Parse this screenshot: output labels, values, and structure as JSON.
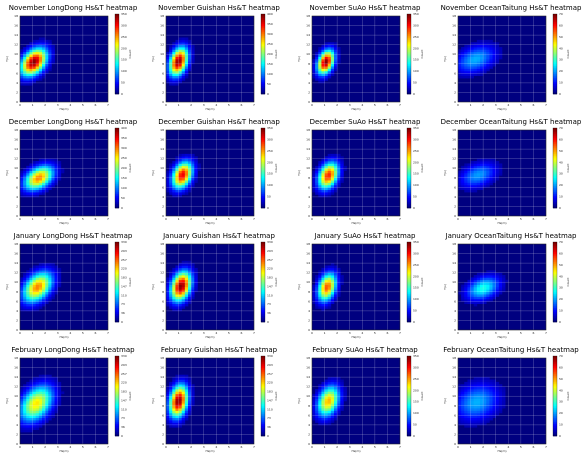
{
  "chart_data": [
    {
      "type": "heatmap",
      "title": "November LongDong Hs&T heatmap",
      "xlabel": "Hs(m)",
      "ylabel": "T(s)",
      "x_ticks": [
        "0",
        "1",
        "2",
        "3",
        "4",
        "5",
        "6",
        "7"
      ],
      "y_ticks": [
        "0",
        "2",
        "4",
        "6",
        "8",
        "10",
        "12",
        "14",
        "16",
        "18"
      ],
      "xlim": [
        0,
        7
      ],
      "ylim": [
        0,
        18
      ],
      "colorbar_ticks": [
        "0",
        "50",
        "100",
        "150",
        "200",
        "250",
        "300",
        "350"
      ],
      "colorbar_label": "Count",
      "peak": [
        1.1,
        8.4
      ],
      "spread": [
        0.7,
        1.8
      ],
      "tilt": 0.5,
      "intensity": 1.0
    },
    {
      "type": "heatmap",
      "title": "November Guishan Hs&T heatmap",
      "xlabel": "Hs(m)",
      "ylabel": "T(s)",
      "x_ticks": [
        "0",
        "1",
        "2",
        "3",
        "4",
        "5",
        "6",
        "7"
      ],
      "y_ticks": [
        "0",
        "2",
        "4",
        "6",
        "8",
        "10",
        "12",
        "14",
        "16",
        "18"
      ],
      "xlim": [
        0,
        7
      ],
      "ylim": [
        0,
        18
      ],
      "colorbar_ticks": [
        "0",
        "50",
        "100",
        "150",
        "200",
        "250",
        "300",
        "350",
        "400"
      ],
      "colorbar_label": "Count",
      "peak": [
        1.0,
        8.5
      ],
      "spread": [
        0.5,
        1.9
      ],
      "tilt": 0.6,
      "intensity": 1.0
    },
    {
      "type": "heatmap",
      "title": "November SuAo Hs&T heatmap",
      "xlabel": "Hs(m)",
      "ylabel": "T(s)",
      "x_ticks": [
        "0",
        "1",
        "2",
        "3",
        "4",
        "5",
        "6",
        "7"
      ],
      "y_ticks": [
        "0",
        "2",
        "4",
        "6",
        "8",
        "10",
        "12",
        "14",
        "16",
        "18"
      ],
      "xlim": [
        0,
        7
      ],
      "ylim": [
        0,
        18
      ],
      "colorbar_ticks": [
        "0",
        "50",
        "100",
        "150",
        "200",
        "250",
        "300",
        "350"
      ],
      "colorbar_label": "Count",
      "peak": [
        1.1,
        8.4
      ],
      "spread": [
        0.45,
        1.6
      ],
      "tilt": 0.6,
      "intensity": 1.0
    },
    {
      "type": "heatmap",
      "title": "November OceanTaitung Hs&T heatmap",
      "xlabel": "Hs(m)",
      "ylabel": "T(s)",
      "x_ticks": [
        "0",
        "1",
        "2",
        "3",
        "4",
        "5",
        "6",
        "7"
      ],
      "y_ticks": [
        "0",
        "2",
        "4",
        "6",
        "8",
        "10",
        "12",
        "14",
        "16",
        "18"
      ],
      "xlim": [
        0,
        7
      ],
      "ylim": [
        0,
        18
      ],
      "colorbar_ticks": [
        "0",
        "10",
        "20",
        "30",
        "40",
        "50",
        "60",
        "70"
      ],
      "colorbar_label": "Count",
      "peak": [
        1.4,
        9.0
      ],
      "spread": [
        1.1,
        1.9
      ],
      "tilt": 0.3,
      "intensity": 0.3
    },
    {
      "type": "heatmap",
      "title": "December LongDong Hs&T heatmap",
      "xlabel": "Hs(m)",
      "ylabel": "T(s)",
      "x_ticks": [
        "0",
        "1",
        "2",
        "3",
        "4",
        "5",
        "6",
        "7"
      ],
      "y_ticks": [
        "0",
        "2",
        "4",
        "6",
        "8",
        "10",
        "12",
        "14",
        "16",
        "18"
      ],
      "xlim": [
        0,
        7
      ],
      "ylim": [
        0,
        18
      ],
      "colorbar_ticks": [
        "0",
        "50",
        "100",
        "150",
        "200",
        "250",
        "300",
        "350",
        "400"
      ],
      "colorbar_label": "Count",
      "peak": [
        1.5,
        8.0
      ],
      "spread": [
        0.8,
        1.6
      ],
      "tilt": 0.4,
      "intensity": 0.75
    },
    {
      "type": "heatmap",
      "title": "December Guishan Hs&T heatmap",
      "xlabel": "Hs(m)",
      "ylabel": "T(s)",
      "x_ticks": [
        "0",
        "1",
        "2",
        "3",
        "4",
        "5",
        "6",
        "7"
      ],
      "y_ticks": [
        "0",
        "2",
        "4",
        "6",
        "8",
        "10",
        "12",
        "14",
        "16",
        "18"
      ],
      "xlim": [
        0,
        7
      ],
      "ylim": [
        0,
        18
      ],
      "colorbar_ticks": [
        "0",
        "50",
        "100",
        "150",
        "200",
        "250",
        "300",
        "350"
      ],
      "colorbar_label": "Count",
      "peak": [
        1.3,
        8.6
      ],
      "spread": [
        0.55,
        1.8
      ],
      "tilt": 0.5,
      "intensity": 0.9
    },
    {
      "type": "heatmap",
      "title": "December SuAo Hs&T heatmap",
      "xlabel": "Hs(m)",
      "ylabel": "T(s)",
      "x_ticks": [
        "0",
        "1",
        "2",
        "3",
        "4",
        "5",
        "6",
        "7"
      ],
      "y_ticks": [
        "0",
        "2",
        "4",
        "6",
        "8",
        "10",
        "12",
        "14",
        "16",
        "18"
      ],
      "xlim": [
        0,
        7
      ],
      "ylim": [
        0,
        18
      ],
      "colorbar_ticks": [
        "0",
        "50",
        "100",
        "150",
        "200",
        "250",
        "300",
        "350"
      ],
      "colorbar_label": "Count",
      "peak": [
        1.3,
        8.5
      ],
      "spread": [
        0.55,
        1.8
      ],
      "tilt": 0.5,
      "intensity": 0.85
    },
    {
      "type": "heatmap",
      "title": "December OceanTaitung Hs&T heatmap",
      "xlabel": "Hs(m)",
      "ylabel": "T(s)",
      "x_ticks": [
        "0",
        "1",
        "2",
        "3",
        "4",
        "5",
        "6",
        "7"
      ],
      "y_ticks": [
        "0",
        "2",
        "4",
        "6",
        "8",
        "10",
        "12",
        "14",
        "16",
        "18"
      ],
      "xlim": [
        0,
        7
      ],
      "ylim": [
        0,
        18
      ],
      "colorbar_ticks": [
        "0",
        "10",
        "20",
        "30",
        "40",
        "50",
        "60",
        "70"
      ],
      "colorbar_label": "Count",
      "peak": [
        1.6,
        8.6
      ],
      "spread": [
        1.0,
        1.7
      ],
      "tilt": 0.3,
      "intensity": 0.28
    },
    {
      "type": "heatmap",
      "title": "January LongDong Hs&T heatmap",
      "xlabel": "Hs(m)",
      "ylabel": "T(s)",
      "x_ticks": [
        "0",
        "1",
        "2",
        "3",
        "4",
        "5",
        "6",
        "7"
      ],
      "y_ticks": [
        "0",
        "2",
        "4",
        "6",
        "8",
        "10",
        "12",
        "14",
        "16",
        "18"
      ],
      "xlim": [
        0,
        7
      ],
      "ylim": [
        0,
        18
      ],
      "colorbar_ticks": [
        "0",
        "36",
        "73",
        "110",
        "147",
        "183",
        "220",
        "257",
        "293",
        "330"
      ],
      "colorbar_label": "Count",
      "peak": [
        1.4,
        9.0
      ],
      "spread": [
        0.8,
        2.0
      ],
      "tilt": 0.5,
      "intensity": 0.75
    },
    {
      "type": "heatmap",
      "title": "January Guishan Hs&T heatmap",
      "xlabel": "Hs(m)",
      "ylabel": "T(s)",
      "x_ticks": [
        "0",
        "1",
        "2",
        "3",
        "4",
        "5",
        "6",
        "7"
      ],
      "y_ticks": [
        "0",
        "2",
        "4",
        "6",
        "8",
        "10",
        "12",
        "14",
        "16",
        "18"
      ],
      "xlim": [
        0,
        7
      ],
      "ylim": [
        0,
        18
      ],
      "colorbar_ticks": [
        "0",
        "36",
        "73",
        "110",
        "147",
        "183",
        "220",
        "257",
        "293",
        "330"
      ],
      "colorbar_label": "Count",
      "peak": [
        1.2,
        9.2
      ],
      "spread": [
        0.55,
        2.0
      ],
      "tilt": 0.5,
      "intensity": 1.0
    },
    {
      "type": "heatmap",
      "title": "January SuAo Hs&T heatmap",
      "xlabel": "Hs(m)",
      "ylabel": "T(s)",
      "x_ticks": [
        "0",
        "1",
        "2",
        "3",
        "4",
        "5",
        "6",
        "7"
      ],
      "y_ticks": [
        "0",
        "2",
        "4",
        "6",
        "8",
        "10",
        "12",
        "14",
        "16",
        "18"
      ],
      "xlim": [
        0,
        7
      ],
      "ylim": [
        0,
        18
      ],
      "colorbar_ticks": [
        "0",
        "50",
        "100",
        "150",
        "200",
        "250",
        "300",
        "350"
      ],
      "colorbar_label": "Count",
      "peak": [
        1.2,
        9.0
      ],
      "spread": [
        0.5,
        1.9
      ],
      "tilt": 0.55,
      "intensity": 0.8
    },
    {
      "type": "heatmap",
      "title": "January OceanTaitung Hs&T heatmap",
      "xlabel": "Hs(m)",
      "ylabel": "T(s)",
      "x_ticks": [
        "0",
        "1",
        "2",
        "3",
        "4",
        "5",
        "6",
        "7"
      ],
      "y_ticks": [
        "0",
        "2",
        "4",
        "6",
        "8",
        "10",
        "12",
        "14",
        "16",
        "18"
      ],
      "xlim": [
        0,
        7
      ],
      "ylim": [
        0,
        18
      ],
      "colorbar_ticks": [
        "0",
        "10",
        "20",
        "30",
        "40",
        "50",
        "60",
        "70"
      ],
      "colorbar_label": "Count",
      "peak": [
        2.0,
        8.8
      ],
      "spread": [
        0.9,
        1.6
      ],
      "tilt": 0.3,
      "intensity": 0.4
    },
    {
      "type": "heatmap",
      "title": "February LongDong Hs&T heatmap",
      "xlabel": "Hs(m)",
      "ylabel": "T(s)",
      "x_ticks": [
        "0",
        "1",
        "2",
        "3",
        "4",
        "5",
        "6",
        "7"
      ],
      "y_ticks": [
        "0",
        "2",
        "4",
        "6",
        "8",
        "10",
        "12",
        "14",
        "16",
        "18"
      ],
      "xlim": [
        0,
        7
      ],
      "ylim": [
        0,
        18
      ],
      "colorbar_ticks": [
        "0",
        "36",
        "73",
        "110",
        "147",
        "183",
        "220",
        "257",
        "293",
        "330"
      ],
      "colorbar_label": "Count",
      "peak": [
        1.3,
        8.5
      ],
      "spread": [
        0.9,
        2.4
      ],
      "tilt": 0.5,
      "intensity": 0.65
    },
    {
      "type": "heatmap",
      "title": "February Guishan Hs&T heatmap",
      "xlabel": "Hs(m)",
      "ylabel": "T(s)",
      "x_ticks": [
        "0",
        "1",
        "2",
        "3",
        "4",
        "5",
        "6",
        "7"
      ],
      "y_ticks": [
        "0",
        "2",
        "4",
        "6",
        "8",
        "10",
        "12",
        "14",
        "16",
        "18"
      ],
      "xlim": [
        0,
        7
      ],
      "ylim": [
        0,
        18
      ],
      "colorbar_ticks": [
        "0",
        "36",
        "73",
        "110",
        "147",
        "183",
        "220",
        "257",
        "293",
        "330"
      ],
      "colorbar_label": "Count",
      "peak": [
        1.0,
        9.0
      ],
      "spread": [
        0.5,
        2.2
      ],
      "tilt": 0.5,
      "intensity": 1.0
    },
    {
      "type": "heatmap",
      "title": "February SuAo Hs&T heatmap",
      "xlabel": "Hs(m)",
      "ylabel": "T(s)",
      "x_ticks": [
        "0",
        "1",
        "2",
        "3",
        "4",
        "5",
        "6",
        "7"
      ],
      "y_ticks": [
        "0",
        "2",
        "4",
        "6",
        "8",
        "10",
        "12",
        "14",
        "16",
        "18"
      ],
      "xlim": [
        0,
        7
      ],
      "ylim": [
        0,
        18
      ],
      "colorbar_ticks": [
        "0",
        "50",
        "100",
        "150",
        "200",
        "250",
        "300",
        "350"
      ],
      "colorbar_label": "Count",
      "peak": [
        1.3,
        9.0
      ],
      "spread": [
        0.6,
        2.1
      ],
      "tilt": 0.5,
      "intensity": 0.7
    },
    {
      "type": "heatmap",
      "title": "February OceanTaitung Hs&T heatmap",
      "xlabel": "Hs(m)",
      "ylabel": "T(s)",
      "x_ticks": [
        "0",
        "1",
        "2",
        "3",
        "4",
        "5",
        "6",
        "7"
      ],
      "y_ticks": [
        "0",
        "2",
        "4",
        "6",
        "8",
        "10",
        "12",
        "14",
        "16",
        "18"
      ],
      "xlim": [
        0,
        7
      ],
      "ylim": [
        0,
        18
      ],
      "colorbar_ticks": [
        "0",
        "10",
        "20",
        "30",
        "40",
        "50",
        "60",
        "70"
      ],
      "colorbar_label": "Count",
      "peak": [
        1.5,
        8.8
      ],
      "spread": [
        1.2,
        2.6
      ],
      "tilt": 0.2,
      "intensity": 0.3
    }
  ]
}
